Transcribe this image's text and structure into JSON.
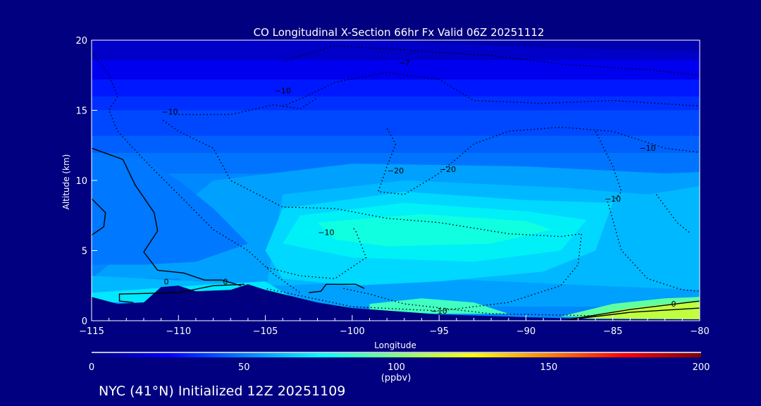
{
  "chart_data": {
    "type": "heatmap",
    "subtype": "filled contour cross-section",
    "title": "CO Longitudinal X-Section 66hr  Fx Valid 06Z 20251112",
    "xlabel": "Longitude",
    "ylabel": "Altitude (km)",
    "xlim": [
      -115,
      -80
    ],
    "ylim": [
      0,
      20
    ],
    "x_ticks": [
      "−115",
      "−110",
      "−105",
      "−100",
      "−95",
      "−90",
      "−85",
      "−80"
    ],
    "y_ticks": [
      "0",
      "5",
      "10",
      "15",
      "20"
    ],
    "colorbar": {
      "min": 0,
      "max": 200,
      "ticks": [
        "0",
        "50",
        "100",
        "150",
        "200"
      ],
      "unit": "(ppbv)",
      "colormap": [
        "#000080",
        "#0000ff",
        "#00ffff",
        "#80ff80",
        "#ffff00",
        "#ff8000",
        "#ff0000",
        "#800000"
      ]
    },
    "contour_labels": [
      {
        "text": "−10",
        "lon": -110.5,
        "alt": 14.7
      },
      {
        "text": "−10",
        "lon": -104,
        "alt": 16.2
      },
      {
        "text": "−7",
        "lon": -97,
        "alt": 18.2
      },
      {
        "text": "−20",
        "lon": -97.5,
        "alt": 10.5
      },
      {
        "text": "−20",
        "lon": -94.5,
        "alt": 10.6
      },
      {
        "text": "−10",
        "lon": -83,
        "alt": 12.1
      },
      {
        "text": "−10",
        "lon": -85,
        "alt": 8.5
      },
      {
        "text": "−10",
        "lon": -101.5,
        "alt": 6.1
      },
      {
        "text": "−10",
        "lon": -95,
        "alt": 0.5
      },
      {
        "text": "0",
        "lon": -110.7,
        "alt": 2.6
      },
      {
        "text": "0",
        "lon": -107.3,
        "alt": 2.6
      },
      {
        "text": "0",
        "lon": -81.5,
        "alt": 1
      }
    ]
  },
  "footer": {
    "caption": "NYC (41°N) Initialized 12Z 20251109"
  }
}
